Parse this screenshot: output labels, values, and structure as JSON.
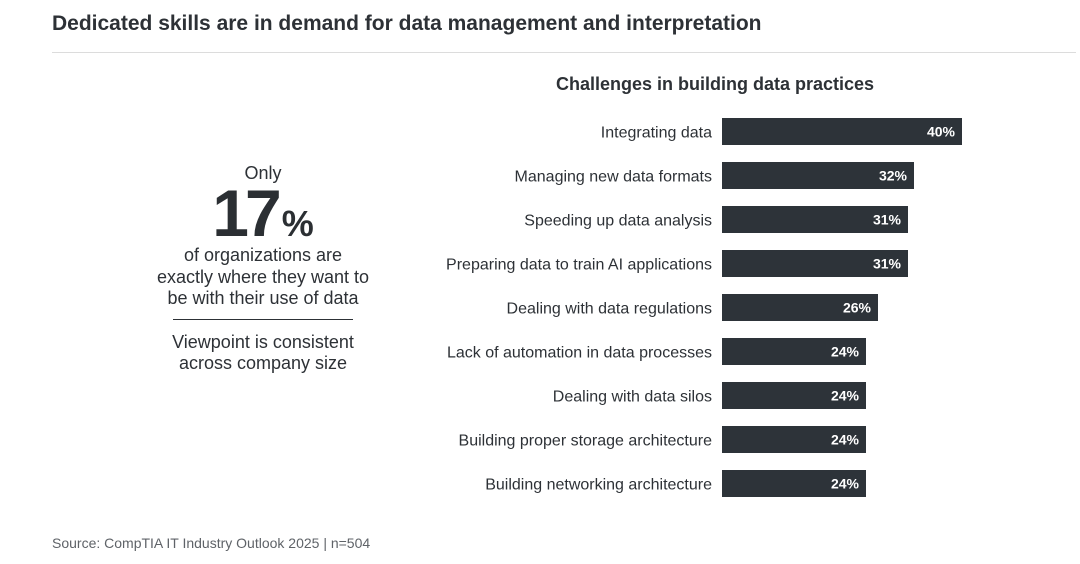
{
  "header": {
    "title": "Dedicated skills are in demand for data management and interpretation"
  },
  "stat": {
    "prefix": "Only",
    "number": "17",
    "unit": "%",
    "description": "of organizations are exactly where they want to be with their use of data",
    "note": "Viewpoint is consistent across company size"
  },
  "chart_data": {
    "type": "bar",
    "orientation": "horizontal",
    "title": "Challenges in building data practices",
    "categories": [
      "Integrating data",
      "Managing new data formats",
      "Speeding up data analysis",
      "Preparing data to train AI applications",
      "Dealing with data regulations",
      "Lack of automation in data processes",
      "Dealing with data silos",
      "Building proper storage architecture",
      "Building networking architecture"
    ],
    "values": [
      40,
      32,
      31,
      31,
      26,
      24,
      24,
      24,
      24
    ],
    "value_labels": [
      "40%",
      "32%",
      "31%",
      "31%",
      "26%",
      "24%",
      "24%",
      "24%",
      "24%"
    ],
    "unit": "%",
    "xlim": [
      0,
      100
    ],
    "bar_color": "#2d3339",
    "label_color": "#ffffff",
    "grid": false,
    "legend": "none"
  },
  "footer": {
    "source": "Source: CompTIA IT Industry Outlook 2025 | n=504"
  }
}
